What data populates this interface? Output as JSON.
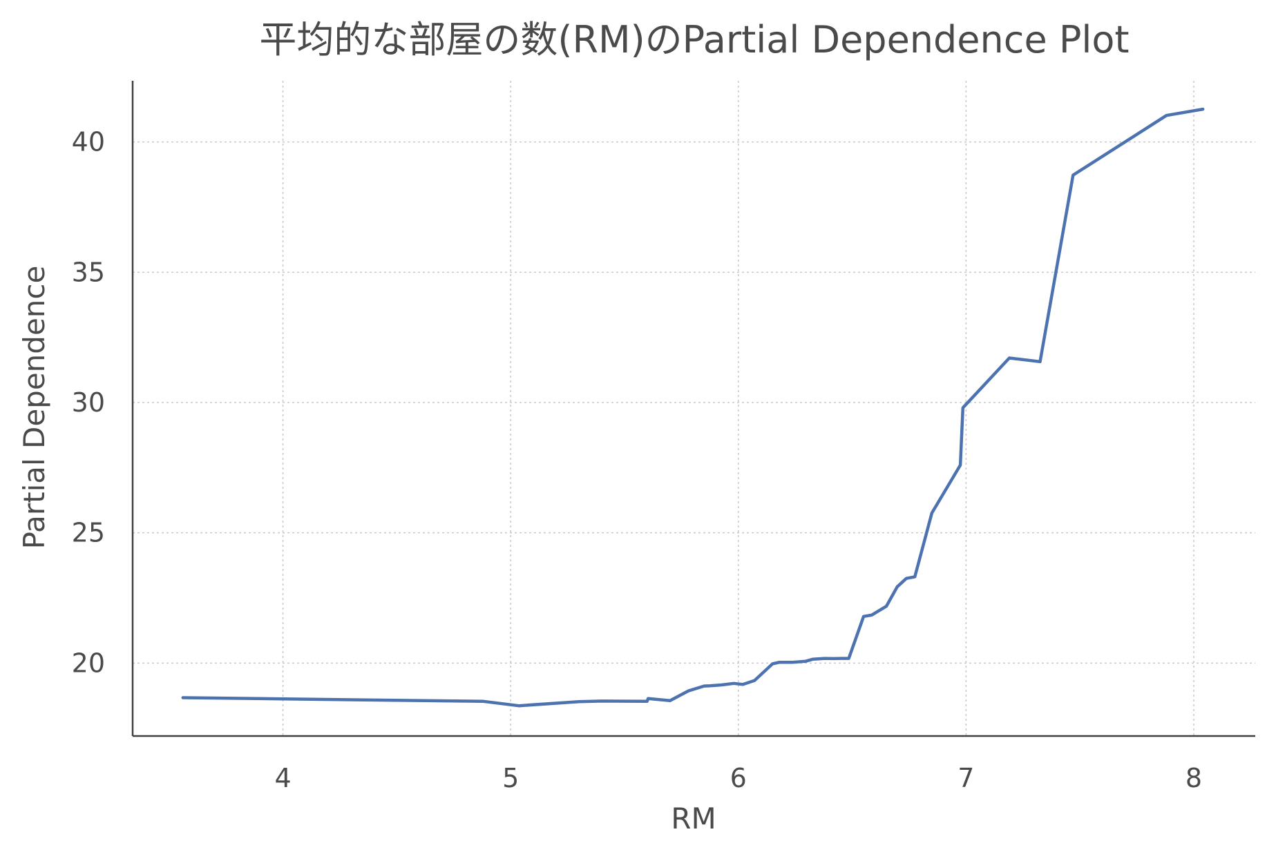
{
  "chart_data": {
    "type": "line",
    "title": "平均的な部屋の数(RM)のPartial Dependence Plot",
    "xlabel": "RM",
    "ylabel": "Partial Dependence",
    "xlim": [
      3.34,
      8.27
    ],
    "ylim": [
      17.2,
      42.35
    ],
    "xticks": [
      4,
      5,
      6,
      7,
      8
    ],
    "xtick_labels": [
      "4",
      "5",
      "6",
      "7",
      "8"
    ],
    "yticks": [
      20,
      25,
      30,
      35,
      40
    ],
    "ytick_labels": [
      "20",
      "25",
      "30",
      "35",
      "40"
    ],
    "grid": true,
    "legend": "none",
    "series": [
      {
        "color": "#4c72b0",
        "x": [
          3.561,
          4.88,
          5.036,
          5.3,
          5.4,
          5.599,
          5.604,
          5.7,
          5.78,
          5.85,
          5.876,
          5.927,
          5.98,
          6.02,
          6.071,
          6.15,
          6.18,
          6.238,
          6.296,
          6.328,
          6.38,
          6.418,
          6.45,
          6.485,
          6.55,
          6.585,
          6.65,
          6.698,
          6.738,
          6.775,
          6.85,
          6.975,
          6.986,
          7.19,
          7.325,
          7.47,
          7.88,
          8.04
        ],
        "y": [
          18.67,
          18.53,
          18.36,
          18.52,
          18.54,
          18.53,
          18.64,
          18.56,
          18.93,
          19.12,
          19.13,
          19.16,
          19.22,
          19.18,
          19.33,
          19.97,
          20.03,
          20.03,
          20.07,
          20.15,
          20.18,
          20.17,
          20.18,
          20.18,
          21.79,
          21.84,
          22.18,
          22.93,
          23.25,
          23.31,
          25.76,
          27.6,
          29.8,
          31.71,
          31.57,
          38.73,
          41.02,
          41.26
        ]
      }
    ]
  }
}
